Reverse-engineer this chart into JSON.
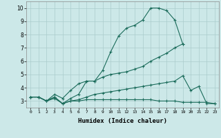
{
  "xlabel": "Humidex (Indice chaleur)",
  "xlim": [
    -0.5,
    23.5
  ],
  "ylim": [
    2.5,
    10.5
  ],
  "yticks": [
    3,
    4,
    5,
    6,
    7,
    8,
    9,
    10
  ],
  "xticks": [
    0,
    1,
    2,
    3,
    4,
    5,
    6,
    7,
    8,
    9,
    10,
    11,
    12,
    13,
    14,
    15,
    16,
    17,
    18,
    19,
    20,
    21,
    22,
    23
  ],
  "background_color": "#cce8e8",
  "grid_color": "#aacccc",
  "line_color": "#1a6b5a",
  "lines": [
    {
      "x": [
        0,
        1,
        2,
        3,
        4,
        5,
        6,
        7,
        8,
        9,
        10,
        11,
        12,
        13,
        14,
        15,
        16,
        17,
        18,
        19
      ],
      "y": [
        3.3,
        3.3,
        3.0,
        3.3,
        2.8,
        3.2,
        3.5,
        4.5,
        4.5,
        5.3,
        6.7,
        7.9,
        8.5,
        8.7,
        9.1,
        10.0,
        10.0,
        9.8,
        9.1,
        7.3
      ]
    },
    {
      "x": [
        0,
        1,
        2,
        3,
        4,
        5,
        6,
        7,
        8,
        9,
        10,
        11,
        12,
        13,
        14,
        15,
        16,
        17,
        18,
        19
      ],
      "y": [
        3.3,
        3.3,
        3.0,
        3.5,
        3.2,
        3.8,
        4.3,
        4.5,
        4.5,
        4.8,
        5.0,
        5.1,
        5.2,
        5.4,
        5.6,
        6.0,
        6.3,
        6.6,
        7.0,
        7.3
      ]
    },
    {
      "x": [
        0,
        1,
        2,
        3,
        4,
        5,
        6,
        7,
        8,
        9,
        10,
        11,
        12,
        13,
        14,
        15,
        16,
        17,
        18,
        19,
        20,
        21,
        22,
        23
      ],
      "y": [
        3.3,
        3.3,
        3.0,
        3.3,
        2.8,
        3.0,
        3.1,
        3.3,
        3.5,
        3.6,
        3.7,
        3.8,
        3.9,
        4.0,
        4.1,
        4.2,
        4.3,
        4.4,
        4.5,
        4.9,
        3.8,
        4.1,
        2.8,
        2.8
      ]
    },
    {
      "x": [
        0,
        1,
        2,
        3,
        4,
        5,
        6,
        7,
        8,
        9,
        10,
        11,
        12,
        13,
        14,
        15,
        16,
        17,
        18,
        19,
        20,
        21,
        22,
        23
      ],
      "y": [
        3.3,
        3.3,
        3.0,
        3.2,
        2.8,
        3.0,
        3.0,
        3.1,
        3.1,
        3.1,
        3.1,
        3.1,
        3.1,
        3.1,
        3.1,
        3.1,
        3.0,
        3.0,
        3.0,
        2.9,
        2.9,
        2.9,
        2.9,
        2.8
      ]
    }
  ]
}
